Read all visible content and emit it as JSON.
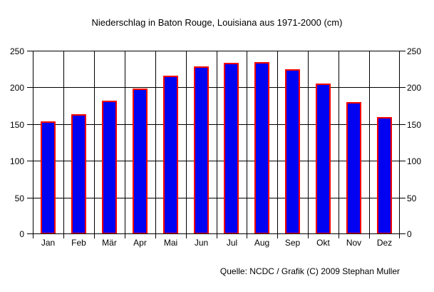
{
  "page": {
    "background": "#ffffff",
    "text_color": "#000000"
  },
  "chart_data": {
    "type": "bar",
    "title": "Niederschlag in Baton Rouge, Louisiana aus 1971-2000 (cm)",
    "categories": [
      "Jan",
      "Feb",
      "Mär",
      "Apr",
      "Mai",
      "Jun",
      "Jul",
      "Aug",
      "Sep",
      "Okt",
      "Nov",
      "Dez"
    ],
    "values": [
      154,
      163,
      182,
      198,
      216,
      229,
      233,
      234,
      225,
      205,
      180,
      160
    ],
    "xlabel": "",
    "ylabel": "",
    "ylim": [
      0,
      250
    ],
    "yticks": [
      0,
      50,
      100,
      150,
      200,
      250
    ],
    "grid": true,
    "dual_y_axis": true,
    "legend": "none",
    "bar_fill": "#0202f2",
    "bar_border": "#f40000",
    "gridline_color": "#000000"
  },
  "footer": {
    "credit": "Quelle: NCDC / Grafik (C) 2009 Stephan Muller"
  }
}
